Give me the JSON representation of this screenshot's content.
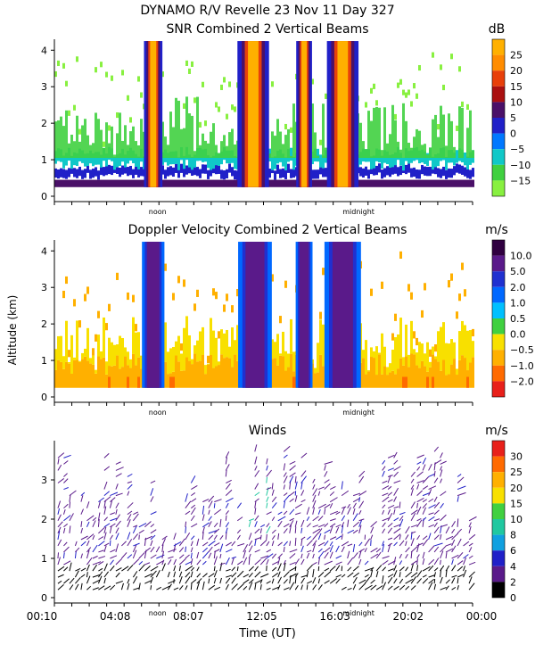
{
  "chart_data": {
    "type": "heatmap",
    "title": "DYNAMO R/V Revelle  23 Nov 11 Day 327",
    "xlabel": "Time (UT)",
    "ylabel": "Altitude (km)",
    "x_ticks": [
      "00:10",
      "04:08",
      "08:07",
      "12:05",
      "16:03",
      "20:02",
      "00:00"
    ],
    "x_markers": [
      "noon",
      "midnight"
    ],
    "xlim_hours": [
      0.17,
      24.0
    ],
    "panels": [
      {
        "name": "snr",
        "title": "SNR Combined 2 Vertical Beams",
        "units": "dB",
        "ylim": [
          0,
          4.3
        ],
        "y_ticks": [
          "0",
          "1",
          "2",
          "3",
          "4"
        ],
        "colorbar": {
          "labels": [
            "25",
            "20",
            "15",
            "10",
            "5",
            "0",
            "−5",
            "−10",
            "−15"
          ],
          "colors": [
            "#ffb000",
            "#ff8c00",
            "#e8400a",
            "#aa1010",
            "#4a1068",
            "#2020c8",
            "#0078ff",
            "#10c8c8",
            "#40d040",
            "#88f040"
          ]
        },
        "vertical_features": [
          {
            "center_hour": 5.8,
            "width_hour": 0.7,
            "value_db": 25
          },
          {
            "center_hour": 11.5,
            "width_hour": 1.2,
            "value_db": 20
          },
          {
            "center_hour": 14.4,
            "width_hour": 0.6,
            "value_db": 15
          },
          {
            "center_hour": 16.6,
            "width_hour": 1.2,
            "value_db": 25
          }
        ]
      },
      {
        "name": "doppler",
        "title": "Doppler Velocity Combined 2 Vertical Beams",
        "units": "m/s",
        "ylim": [
          0,
          4.3
        ],
        "y_ticks": [
          "0",
          "1",
          "2",
          "3",
          "4"
        ],
        "colorbar": {
          "labels": [
            "10.0",
            "5.0",
            "2.0",
            "1.0",
            "0.5",
            "0.0",
            "−0.5",
            "−1.0",
            "−2.0"
          ],
          "colors": [
            "#300040",
            "#5a1a8a",
            "#2030d0",
            "#0068ff",
            "#00c0ff",
            "#40d040",
            "#f8e000",
            "#ffb000",
            "#ff6a00",
            "#e8201a"
          ]
        },
        "vertical_features": [
          {
            "center_hour": 5.8,
            "width_hour": 0.8,
            "value_ms": 10.0
          },
          {
            "center_hour": 11.6,
            "width_hour": 1.2,
            "value_ms": 5.0
          },
          {
            "center_hour": 14.4,
            "width_hour": 0.6,
            "value_ms": 5.0
          },
          {
            "center_hour": 16.6,
            "width_hour": 1.3,
            "value_ms": 10.0
          }
        ]
      },
      {
        "name": "winds",
        "title": "Winds",
        "units": "m/s",
        "ylim": [
          0,
          4.0
        ],
        "y_ticks": [
          "0",
          "1",
          "2",
          "3"
        ],
        "colorbar": {
          "labels": [
            "30",
            "25",
            "20",
            "15",
            "10",
            "8",
            "6",
            "4",
            "2",
            "0"
          ],
          "colors": [
            "#e8201a",
            "#ff6a00",
            "#ffb000",
            "#f8e000",
            "#40d040",
            "#20c8a0",
            "#10a0e0",
            "#2020c8",
            "#5a1a8a",
            "#000000"
          ]
        }
      }
    ]
  }
}
